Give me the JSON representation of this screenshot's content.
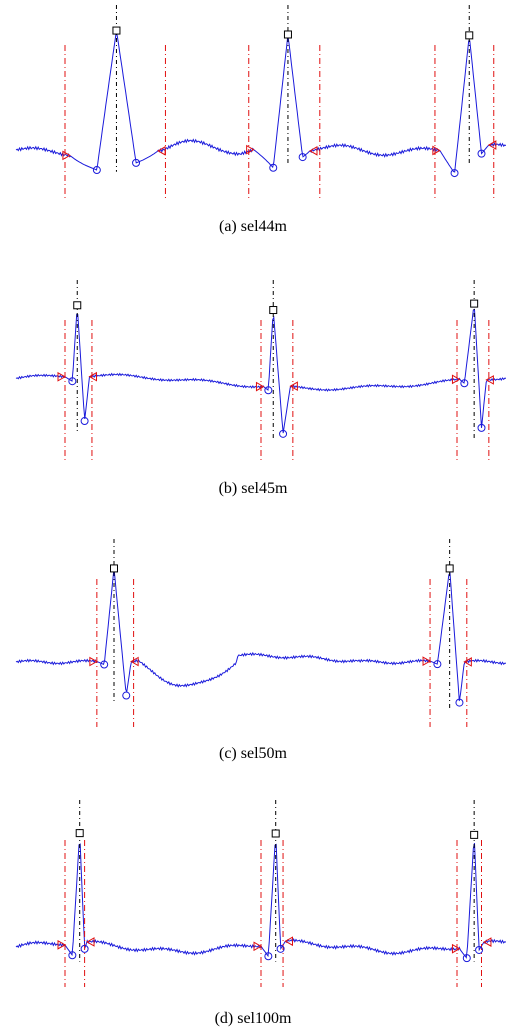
{
  "colors": {
    "signal": "#1a1adb",
    "boundary": "#e01010",
    "peak_marker": "#000000",
    "peak_line": "#000000",
    "wave_marker": "#1a1adb",
    "onset_marker": "#e01010"
  },
  "chart_data": [
    {
      "type": "line",
      "caption": "(a)  sel44m",
      "axes_visible": false,
      "grid": false,
      "beats": [
        {
          "onset": 0.11,
          "q": 0.165,
          "r_peak": 0.205,
          "s": 0.245,
          "offset": 0.29,
          "left_bound": 0.1,
          "right_bound": 0.305,
          "r_amp": 1.0,
          "q_amp": -0.18,
          "s_amp": -0.12
        },
        {
          "onset": 0.485,
          "q": 0.525,
          "r_peak": 0.555,
          "s": 0.585,
          "offset": 0.6,
          "left_bound": 0.475,
          "right_bound": 0.62,
          "r_amp": 1.0,
          "q_amp": -0.18,
          "s_amp": -0.05
        },
        {
          "onset": 0.865,
          "q": 0.895,
          "r_peak": 0.925,
          "s": 0.95,
          "offset": 0.965,
          "left_bound": 0.855,
          "right_bound": 0.975,
          "r_amp": 1.0,
          "q_amp": -0.18,
          "s_amp": -0.06
        }
      ]
    },
    {
      "type": "line",
      "caption": "(b)  sel45m",
      "axes_visible": false,
      "grid": false,
      "beats": [
        {
          "onset": 0.1,
          "q": 0.115,
          "r_peak": 0.125,
          "s": 0.14,
          "offset": 0.15,
          "left_bound": 0.1,
          "right_bound": 0.155,
          "r_amp": 0.9,
          "q_amp": -0.05,
          "s_amp": -0.55
        },
        {
          "onset": 0.505,
          "q": 0.515,
          "r_peak": 0.525,
          "s": 0.545,
          "offset": 0.56,
          "left_bound": 0.5,
          "right_bound": 0.565,
          "r_amp": 0.95,
          "q_amp": -0.05,
          "s_amp": -0.6
        },
        {
          "onset": 0.905,
          "q": 0.915,
          "r_peak": 0.935,
          "s": 0.95,
          "offset": 0.96,
          "left_bound": 0.9,
          "right_bound": 0.965,
          "r_amp": 0.95,
          "q_amp": -0.05,
          "s_amp": -0.6
        }
      ]
    },
    {
      "type": "line",
      "caption": "(c)  sel50m",
      "axes_visible": false,
      "grid": false,
      "beats": [
        {
          "onset": 0.165,
          "q": 0.18,
          "r_peak": 0.2,
          "s": 0.225,
          "offset": 0.235,
          "left_bound": 0.165,
          "right_bound": 0.24,
          "r_amp": 1.0,
          "q_amp": -0.02,
          "s_amp": -0.35
        },
        {
          "onset": 0.845,
          "q": 0.86,
          "r_peak": 0.885,
          "s": 0.905,
          "offset": 0.915,
          "left_bound": 0.845,
          "right_bound": 0.92,
          "r_amp": 1.0,
          "q_amp": -0.02,
          "s_amp": -0.42
        }
      ]
    },
    {
      "type": "line",
      "caption": "(d)  sel100m",
      "axes_visible": false,
      "grid": false,
      "beats": [
        {
          "onset": 0.1,
          "q": 0.115,
          "r_peak": 0.13,
          "s": 0.14,
          "offset": 0.145,
          "left_bound": 0.1,
          "right_bound": 0.14,
          "r_amp": 1.0,
          "q_amp": -0.1,
          "s_amp": -0.06
        },
        {
          "onset": 0.5,
          "q": 0.515,
          "r_peak": 0.53,
          "s": 0.54,
          "offset": 0.55,
          "left_bound": 0.5,
          "right_bound": 0.545,
          "r_amp": 1.0,
          "q_amp": -0.1,
          "s_amp": -0.06
        },
        {
          "onset": 0.905,
          "q": 0.92,
          "r_peak": 0.935,
          "s": 0.945,
          "offset": 0.955,
          "left_bound": 0.9,
          "right_bound": 0.95,
          "r_amp": 1.0,
          "q_amp": -0.1,
          "s_amp": -0.06
        }
      ]
    }
  ]
}
